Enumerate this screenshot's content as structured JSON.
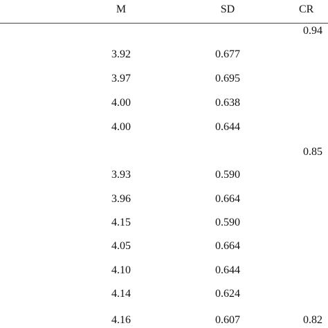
{
  "table": {
    "header": [
      "M",
      "SD",
      "CR"
    ],
    "rows": [
      {
        "cr": "0.94"
      },
      {
        "m": "3.92",
        "sd": "0.677"
      },
      {
        "m": "3.97",
        "sd": "0.695"
      },
      {
        "m": "4.00",
        "sd": "0.638"
      },
      {
        "m": "4.00",
        "sd": "0.644"
      },
      {
        "cr": "0.85"
      },
      {
        "m": "3.93",
        "sd": "0.590"
      },
      {
        "m": "3.96",
        "sd": "0.664"
      },
      {
        "m": "4.15",
        "sd": "0.590"
      },
      {
        "m": "4.05",
        "sd": "0.664"
      },
      {
        "m": "4.10",
        "sd": "0.644"
      },
      {
        "m": "4.14",
        "sd": "0.624"
      },
      {
        "m": "4.16",
        "sd": "0.607",
        "cr": "0.82"
      }
    ]
  }
}
